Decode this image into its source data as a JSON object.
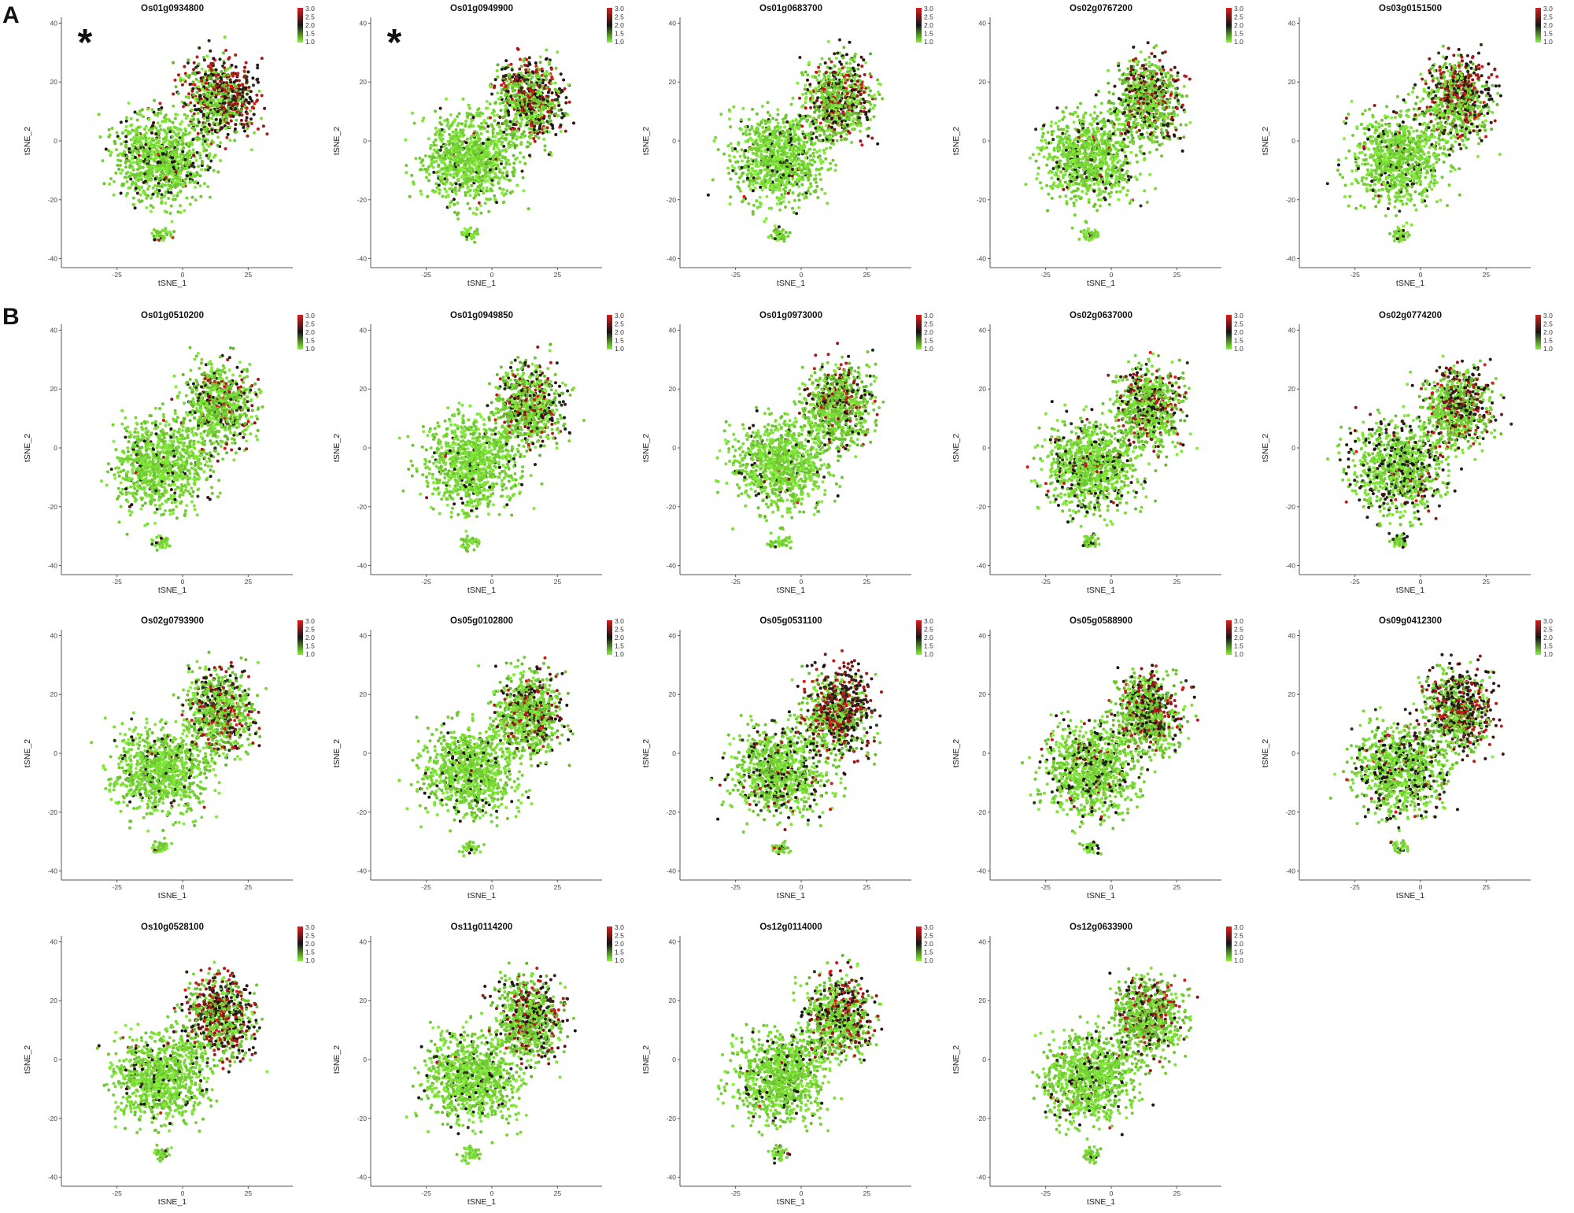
{
  "figure": {
    "panel_labels": [
      "A",
      "B"
    ],
    "marker_symbol": "*",
    "colors": {
      "low": "#86f23a",
      "mid": "#141414",
      "high": "#dd1c1c"
    }
  },
  "chart_data": [
    {
      "type": "scatter",
      "group": "A",
      "title": "Os01g0934800",
      "starred": true,
      "hot": 0.85,
      "spread": 0.25,
      "xlabel": "tSNE_1",
      "ylabel": "tSNE_2",
      "xlim": [
        -45,
        42
      ],
      "ylim": [
        -42,
        42
      ],
      "xticks": [
        -25,
        0,
        25
      ],
      "yticks": [
        -40,
        -20,
        0,
        20,
        40
      ],
      "color_scale": {
        "min": 1.0,
        "max": 3.0,
        "ticks": [
          "3.0",
          "2.5",
          "2.0",
          "1.5",
          "1.0"
        ]
      }
    },
    {
      "type": "scatter",
      "group": "A",
      "title": "Os01g0949900",
      "starred": true,
      "hot": 0.6,
      "spread": 0.1,
      "xlabel": "tSNE_1",
      "ylabel": "tSNE_2",
      "xlim": [
        -45,
        42
      ],
      "ylim": [
        -42,
        42
      ],
      "xticks": [
        -25,
        0,
        25
      ],
      "yticks": [
        -40,
        -20,
        0,
        20,
        40
      ],
      "color_scale": {
        "min": 1.0,
        "max": 3.0,
        "ticks": [
          "3.0",
          "2.5",
          "2.0",
          "1.5",
          "1.0"
        ]
      }
    },
    {
      "type": "scatter",
      "group": "A",
      "title": "Os01g0683700",
      "starred": false,
      "hot": 0.55,
      "spread": 0.15,
      "xlabel": "tSNE_1",
      "ylabel": "tSNE_2",
      "xlim": [
        -45,
        42
      ],
      "ylim": [
        -42,
        42
      ],
      "xticks": [
        -25,
        0,
        25
      ],
      "yticks": [
        -40,
        -20,
        0,
        20,
        40
      ],
      "color_scale": {
        "min": 1.0,
        "max": 3.0,
        "ticks": [
          "3.0",
          "2.5",
          "2.0",
          "1.5",
          "1.0"
        ]
      }
    },
    {
      "type": "scatter",
      "group": "A",
      "title": "Os02g0767200",
      "starred": false,
      "hot": 0.5,
      "spread": 0.15,
      "xlabel": "tSNE_1",
      "ylabel": "tSNE_2",
      "xlim": [
        -45,
        42
      ],
      "ylim": [
        -42,
        42
      ],
      "xticks": [
        -25,
        0,
        25
      ],
      "yticks": [
        -40,
        -20,
        0,
        20,
        40
      ],
      "color_scale": {
        "min": 1.0,
        "max": 3.0,
        "ticks": [
          "3.0",
          "2.5",
          "2.0",
          "1.5",
          "1.0"
        ]
      }
    },
    {
      "type": "scatter",
      "group": "A",
      "title": "Os03g0151500",
      "starred": false,
      "hot": 0.65,
      "spread": 0.15,
      "xlabel": "tSNE_1",
      "ylabel": "tSNE_2",
      "xlim": [
        -45,
        42
      ],
      "ylim": [
        -42,
        42
      ],
      "xticks": [
        -25,
        0,
        25
      ],
      "yticks": [
        -40,
        -20,
        0,
        20,
        40
      ],
      "color_scale": {
        "min": 1.0,
        "max": 3.0,
        "ticks": [
          "3.0",
          "2.5",
          "2.0",
          "1.5",
          "1.0"
        ]
      }
    },
    {
      "type": "scatter",
      "group": "B",
      "title": "Os01g0510200",
      "starred": false,
      "hot": 0.25,
      "spread": 0.1,
      "xlabel": "tSNE_1",
      "ylabel": "tSNE_2",
      "xlim": [
        -45,
        42
      ],
      "ylim": [
        -42,
        42
      ],
      "xticks": [
        -25,
        0,
        25
      ],
      "yticks": [
        -40,
        -20,
        0,
        20,
        40
      ],
      "color_scale": {
        "min": 1.0,
        "max": 3.0,
        "ticks": [
          "3.0",
          "2.5",
          "2.0",
          "1.5",
          "1.0"
        ]
      }
    },
    {
      "type": "scatter",
      "group": "B",
      "title": "Os01g0949850",
      "starred": false,
      "hot": 0.4,
      "spread": 0.05,
      "xlabel": "tSNE_1",
      "ylabel": "tSNE_2",
      "xlim": [
        -45,
        42
      ],
      "ylim": [
        -42,
        42
      ],
      "xticks": [
        -25,
        0,
        25
      ],
      "yticks": [
        -40,
        -20,
        0,
        20,
        40
      ],
      "color_scale": {
        "min": 1.0,
        "max": 3.0,
        "ticks": [
          "3.0",
          "2.5",
          "2.0",
          "1.5",
          "1.0"
        ]
      }
    },
    {
      "type": "scatter",
      "group": "B",
      "title": "Os01g0973000",
      "starred": false,
      "hot": 0.35,
      "spread": 0.05,
      "xlabel": "tSNE_1",
      "ylabel": "tSNE_2",
      "xlim": [
        -45,
        42
      ],
      "ylim": [
        -42,
        42
      ],
      "xticks": [
        -25,
        0,
        25
      ],
      "yticks": [
        -40,
        -20,
        0,
        20,
        40
      ],
      "color_scale": {
        "min": 1.0,
        "max": 3.0,
        "ticks": [
          "3.0",
          "2.5",
          "2.0",
          "1.5",
          "1.0"
        ]
      }
    },
    {
      "type": "scatter",
      "group": "B",
      "title": "Os02g0637000",
      "starred": false,
      "hot": 0.4,
      "spread": 0.35,
      "xlabel": "tSNE_1",
      "ylabel": "tSNE_2",
      "xlim": [
        -45,
        42
      ],
      "ylim": [
        -42,
        42
      ],
      "xticks": [
        -25,
        0,
        25
      ],
      "yticks": [
        -40,
        -20,
        0,
        20,
        40
      ],
      "color_scale": {
        "min": 1.0,
        "max": 3.0,
        "ticks": [
          "3.0",
          "2.5",
          "2.0",
          "1.5",
          "1.0"
        ]
      }
    },
    {
      "type": "scatter",
      "group": "B",
      "title": "Os02g0774200",
      "starred": false,
      "hot": 0.5,
      "spread": 0.5,
      "xlabel": "tSNE_1",
      "ylabel": "tSNE_2",
      "xlim": [
        -45,
        42
      ],
      "ylim": [
        -42,
        42
      ],
      "xticks": [
        -25,
        0,
        25
      ],
      "yticks": [
        -40,
        -20,
        0,
        20,
        40
      ],
      "color_scale": {
        "min": 1.0,
        "max": 3.0,
        "ticks": [
          "3.0",
          "2.5",
          "2.0",
          "1.5",
          "1.0"
        ]
      }
    },
    {
      "type": "scatter",
      "group": "B",
      "title": "Os02g0793900",
      "starred": false,
      "hot": 0.45,
      "spread": 0.1,
      "xlabel": "tSNE_1",
      "ylabel": "tSNE_2",
      "xlim": [
        -45,
        42
      ],
      "ylim": [
        -42,
        42
      ],
      "xticks": [
        -25,
        0,
        25
      ],
      "yticks": [
        -40,
        -20,
        0,
        20,
        40
      ],
      "color_scale": {
        "min": 1.0,
        "max": 3.0,
        "ticks": [
          "3.0",
          "2.5",
          "2.0",
          "1.5",
          "1.0"
        ]
      }
    },
    {
      "type": "scatter",
      "group": "B",
      "title": "Os05g0102800",
      "starred": false,
      "hot": 0.4,
      "spread": 0.1,
      "xlabel": "tSNE_1",
      "ylabel": "tSNE_2",
      "xlim": [
        -45,
        42
      ],
      "ylim": [
        -42,
        42
      ],
      "xticks": [
        -25,
        0,
        25
      ],
      "yticks": [
        -40,
        -20,
        0,
        20,
        40
      ],
      "color_scale": {
        "min": 1.0,
        "max": 3.0,
        "ticks": [
          "3.0",
          "2.5",
          "2.0",
          "1.5",
          "1.0"
        ]
      }
    },
    {
      "type": "scatter",
      "group": "B",
      "title": "Os05g0531100",
      "starred": false,
      "hot": 0.85,
      "spread": 0.35,
      "xlabel": "tSNE_1",
      "ylabel": "tSNE_2",
      "xlim": [
        -45,
        42
      ],
      "ylim": [
        -42,
        42
      ],
      "xticks": [
        -25,
        0,
        25
      ],
      "yticks": [
        -40,
        -20,
        0,
        20,
        40
      ],
      "color_scale": {
        "min": 1.0,
        "max": 3.0,
        "ticks": [
          "3.0",
          "2.5",
          "2.0",
          "1.5",
          "1.0"
        ]
      }
    },
    {
      "type": "scatter",
      "group": "B",
      "title": "Os05g0588900",
      "starred": false,
      "hot": 0.55,
      "spread": 0.35,
      "xlabel": "tSNE_1",
      "ylabel": "tSNE_2",
      "xlim": [
        -45,
        42
      ],
      "ylim": [
        -42,
        42
      ],
      "xticks": [
        -25,
        0,
        25
      ],
      "yticks": [
        -40,
        -20,
        0,
        20,
        40
      ],
      "color_scale": {
        "min": 1.0,
        "max": 3.0,
        "ticks": [
          "3.0",
          "2.5",
          "2.0",
          "1.5",
          "1.0"
        ]
      }
    },
    {
      "type": "scatter",
      "group": "B",
      "title": "Os09g0412300",
      "starred": false,
      "hot": 0.75,
      "spread": 0.45,
      "xlabel": "tSNE_1",
      "ylabel": "tSNE_2",
      "xlim": [
        -45,
        42
      ],
      "ylim": [
        -42,
        42
      ],
      "xticks": [
        -25,
        0,
        25
      ],
      "yticks": [
        -40,
        -20,
        0,
        20,
        40
      ],
      "color_scale": {
        "min": 1.0,
        "max": 3.0,
        "ticks": [
          "3.0",
          "2.5",
          "2.0",
          "1.5",
          "1.0"
        ]
      }
    },
    {
      "type": "scatter",
      "group": "B",
      "title": "Os10g0528100",
      "starred": false,
      "hot": 0.75,
      "spread": 0.15,
      "xlabel": "tSNE_1",
      "ylabel": "tSNE_2",
      "xlim": [
        -45,
        42
      ],
      "ylim": [
        -42,
        42
      ],
      "xticks": [
        -25,
        0,
        25
      ],
      "yticks": [
        -40,
        -20,
        0,
        20,
        40
      ],
      "color_scale": {
        "min": 1.0,
        "max": 3.0,
        "ticks": [
          "3.0",
          "2.5",
          "2.0",
          "1.5",
          "1.0"
        ]
      }
    },
    {
      "type": "scatter",
      "group": "B",
      "title": "Os11g0114200",
      "starred": false,
      "hot": 0.5,
      "spread": 0.15,
      "xlabel": "tSNE_1",
      "ylabel": "tSNE_2",
      "xlim": [
        -45,
        42
      ],
      "ylim": [
        -42,
        42
      ],
      "xticks": [
        -25,
        0,
        25
      ],
      "yticks": [
        -40,
        -20,
        0,
        20,
        40
      ],
      "color_scale": {
        "min": 1.0,
        "max": 3.0,
        "ticks": [
          "3.0",
          "2.5",
          "2.0",
          "1.5",
          "1.0"
        ]
      }
    },
    {
      "type": "scatter",
      "group": "B",
      "title": "Os12g0114000",
      "starred": false,
      "hot": 0.55,
      "spread": 0.15,
      "xlabel": "tSNE_1",
      "ylabel": "tSNE_2",
      "xlim": [
        -45,
        42
      ],
      "ylim": [
        -42,
        42
      ],
      "xticks": [
        -25,
        0,
        25
      ],
      "yticks": [
        -40,
        -20,
        0,
        20,
        40
      ],
      "color_scale": {
        "min": 1.0,
        "max": 3.0,
        "ticks": [
          "3.0",
          "2.5",
          "2.0",
          "1.5",
          "1.0"
        ]
      }
    },
    {
      "type": "scatter",
      "group": "B",
      "title": "Os12g0633900",
      "starred": false,
      "hot": 0.35,
      "spread": 0.15,
      "xlabel": "tSNE_1",
      "ylabel": "tSNE_2",
      "xlim": [
        -45,
        42
      ],
      "ylim": [
        -42,
        42
      ],
      "xticks": [
        -25,
        0,
        25
      ],
      "yticks": [
        -40,
        -20,
        0,
        20,
        40
      ],
      "color_scale": {
        "min": 1.0,
        "max": 3.0,
        "ticks": [
          "3.0",
          "2.5",
          "2.0",
          "1.5",
          "1.0"
        ]
      }
    }
  ]
}
